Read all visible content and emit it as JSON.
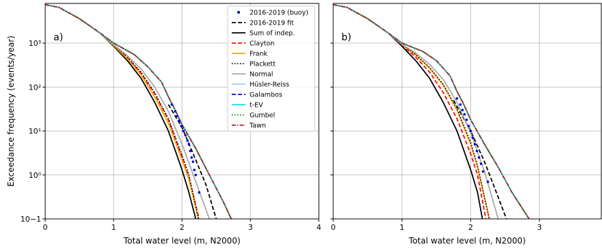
{
  "chart_data": [
    {
      "type": "line",
      "panel_label": "a)",
      "xlabel": "Total water level (m, N2000)",
      "ylabel": "Exceedance frequency (events/year)",
      "xlim": [
        0,
        4
      ],
      "ylim": [
        0.1,
        8000
      ],
      "yscale": "log",
      "grid": true,
      "x_ticks": [
        "0",
        "1",
        "2",
        "3",
        "4"
      ],
      "y_ticks": [
        "10−1",
        "10⁰",
        "10¹",
        "10²",
        "10³"
      ],
      "legend_position": "top-right",
      "series": [
        {
          "name": "2016-2019 (buoy)",
          "style": "points",
          "color": "#0000dd",
          "x": [
            1.85,
            1.9,
            1.93,
            1.96,
            1.99,
            2.02,
            2.05,
            2.08,
            2.1,
            2.12,
            2.14,
            2.16,
            2.18,
            2.2,
            2.25
          ],
          "y": [
            40,
            28,
            22,
            17,
            13,
            10,
            8,
            6,
            5,
            3.5,
            2.5,
            2,
            1.3,
            1.0,
            0.4
          ]
        },
        {
          "name": "2016-2019 fit",
          "style": "dashed",
          "color": "#000000",
          "x": [
            1.8,
            2.0,
            2.2,
            2.35,
            2.5
          ],
          "y": [
            40,
            12,
            2.2,
            0.6,
            0.1
          ]
        },
        {
          "name": "Sum of indep.",
          "style": "solid",
          "color": "#000000",
          "x": [
            0,
            0.2,
            0.5,
            0.8,
            1.0,
            1.2,
            1.4,
            1.6,
            1.8,
            2.0,
            2.1,
            2.2
          ],
          "y": [
            7500,
            6500,
            3600,
            1700,
            850,
            400,
            160,
            45,
            10,
            1.3,
            0.4,
            0.1
          ]
        },
        {
          "name": "Clayton",
          "style": "dashed",
          "color": "#ff0000",
          "x": [
            0,
            0.2,
            0.5,
            0.8,
            1.0,
            1.2,
            1.4,
            1.6,
            1.8,
            2.0,
            2.1,
            2.25
          ],
          "y": [
            7500,
            6500,
            3600,
            1700,
            900,
            470,
            210,
            70,
            18,
            2.6,
            0.9,
            0.1
          ]
        },
        {
          "name": "Frank",
          "style": "solid",
          "color": "#ffa500",
          "x": [
            0,
            0.2,
            0.5,
            0.8,
            1.0,
            1.2,
            1.4,
            1.6,
            1.8,
            2.0,
            2.1,
            2.24
          ],
          "y": [
            7500,
            6500,
            3600,
            1700,
            880,
            440,
            190,
            60,
            15,
            2.2,
            0.8,
            0.1
          ]
        },
        {
          "name": "Plackett",
          "style": "dotted",
          "color": "#000000",
          "x": [
            0,
            0.2,
            0.5,
            0.8,
            1.0,
            1.2,
            1.4,
            1.6,
            1.8,
            2.0,
            2.1,
            2.24
          ],
          "y": [
            7500,
            6500,
            3600,
            1700,
            900,
            480,
            220,
            75,
            19,
            2.8,
            1.0,
            0.1
          ]
        },
        {
          "name": "Normal",
          "style": "solid",
          "color": "#aaaaaa",
          "x": [
            0,
            0.2,
            0.5,
            0.8,
            1.0,
            1.2,
            1.4,
            1.6,
            1.8,
            2.0,
            2.2,
            2.4
          ],
          "y": [
            7500,
            6500,
            3600,
            1700,
            920,
            520,
            260,
            100,
            28,
            5,
            0.7,
            0.1
          ]
        },
        {
          "name": "Hüsler-Reiss",
          "style": "solid",
          "color": "#a6cee3",
          "x": [
            0,
            0.2,
            0.5,
            0.8,
            1.0,
            1.3,
            1.5,
            1.7,
            1.8,
            1.9,
            2.0,
            2.2,
            2.4,
            2.6,
            2.72
          ],
          "y": [
            7500,
            6500,
            3600,
            1700,
            1000,
            550,
            290,
            130,
            60,
            30,
            14,
            4,
            1,
            0.25,
            0.1
          ]
        },
        {
          "name": "Galambos",
          "style": "dashed",
          "color": "#0000dd",
          "x": [
            0,
            0.2,
            0.5,
            0.8,
            1.0,
            1.3,
            1.5,
            1.7,
            1.8,
            1.9,
            2.0,
            2.2,
            2.4,
            2.6,
            2.72
          ],
          "y": [
            7500,
            6500,
            3600,
            1700,
            1000,
            550,
            290,
            130,
            60,
            30,
            14,
            4,
            1,
            0.25,
            0.1
          ]
        },
        {
          "name": "t-EV",
          "style": "solid",
          "color": "#00e5ee",
          "x": [
            0,
            0.2,
            0.5,
            0.8,
            1.0,
            1.3,
            1.5,
            1.7,
            1.8,
            1.9,
            2.0,
            2.2,
            2.4,
            2.6,
            2.72
          ],
          "y": [
            7500,
            6500,
            3600,
            1700,
            1000,
            550,
            290,
            130,
            60,
            30,
            14,
            4,
            1,
            0.25,
            0.1
          ]
        },
        {
          "name": "Gumbel",
          "style": "dotted",
          "color": "#008000",
          "x": [
            0,
            0.2,
            0.5,
            0.8,
            1.0,
            1.3,
            1.5,
            1.7,
            1.8,
            1.9,
            2.0,
            2.2,
            2.4,
            2.6,
            2.72
          ],
          "y": [
            7500,
            6500,
            3600,
            1700,
            1000,
            550,
            290,
            130,
            60,
            30,
            14,
            4,
            1,
            0.25,
            0.1
          ]
        },
        {
          "name": "Tawn",
          "style": "dashdot",
          "color": "#b22222",
          "x": [
            0,
            0.2,
            0.5,
            0.8,
            1.0,
            1.3,
            1.5,
            1.7,
            1.8,
            1.9,
            2.0,
            2.2,
            2.4,
            2.6,
            2.72
          ],
          "y": [
            7500,
            6500,
            3600,
            1700,
            1000,
            550,
            290,
            130,
            60,
            30,
            14,
            4,
            1,
            0.25,
            0.1
          ]
        }
      ]
    },
    {
      "type": "line",
      "panel_label": "b)",
      "xlabel": "Total water level (m, N2000)",
      "ylabel": "",
      "xlim": [
        0,
        3.9
      ],
      "ylim": [
        0.1,
        8000
      ],
      "yscale": "log",
      "grid": true,
      "x_ticks": [
        "0",
        "1",
        "2",
        "3"
      ],
      "y_ticks": [],
      "series": [
        {
          "name": "2016-2019 (buoy)",
          "style": "points",
          "color": "#0000dd",
          "x": [
            1.8,
            1.85,
            1.88,
            1.91,
            1.94,
            1.97,
            2.0,
            2.03,
            2.06,
            2.09,
            2.12,
            2.15,
            2.18,
            2.25
          ],
          "y": [
            55,
            40,
            30,
            24,
            18,
            13,
            10,
            7,
            5,
            3.5,
            2.5,
            1.8,
            1.2,
            0.7
          ]
        },
        {
          "name": "2016-2019 fit",
          "style": "dashed",
          "color": "#000000",
          "x": [
            1.75,
            2.0,
            2.2,
            2.35,
            2.52
          ],
          "y": [
            50,
            10,
            2,
            0.5,
            0.1
          ]
        },
        {
          "name": "Sum of indep.",
          "style": "solid",
          "color": "#000000",
          "x": [
            0,
            0.2,
            0.5,
            0.8,
            1.0,
            1.2,
            1.4,
            1.6,
            1.8,
            2.0,
            2.1,
            2.17
          ],
          "y": [
            7500,
            6500,
            3600,
            1700,
            850,
            400,
            160,
            45,
            10,
            1.3,
            0.4,
            0.1
          ]
        },
        {
          "name": "Clayton",
          "style": "dashed",
          "color": "#ff0000",
          "x": [
            0,
            0.2,
            0.5,
            0.8,
            1.0,
            1.2,
            1.4,
            1.6,
            1.8,
            2.0,
            2.1,
            2.22
          ],
          "y": [
            7500,
            6500,
            3600,
            1700,
            900,
            480,
            220,
            75,
            19,
            3,
            1,
            0.1
          ]
        },
        {
          "name": "Frank",
          "style": "solid",
          "color": "#ffa500",
          "x": [
            0,
            0.2,
            0.5,
            0.8,
            1.0,
            1.2,
            1.4,
            1.6,
            1.8,
            2.0,
            2.1,
            2.27
          ],
          "y": [
            7500,
            6500,
            3600,
            1700,
            930,
            540,
            270,
            110,
            30,
            5,
            1.5,
            0.1
          ]
        },
        {
          "name": "Plackett",
          "style": "dotted",
          "color": "#000000",
          "x": [
            0,
            0.2,
            0.5,
            0.8,
            1.0,
            1.2,
            1.4,
            1.6,
            1.8,
            2.0,
            2.1,
            2.27
          ],
          "y": [
            7500,
            6500,
            3600,
            1700,
            930,
            550,
            280,
            115,
            32,
            5.5,
            1.6,
            0.1
          ]
        },
        {
          "name": "Normal",
          "style": "solid",
          "color": "#aaaaaa",
          "x": [
            0,
            0.2,
            0.5,
            0.8,
            1.0,
            1.2,
            1.4,
            1.6,
            1.8,
            2.0,
            2.2,
            2.4
          ],
          "y": [
            7500,
            6500,
            3600,
            1700,
            940,
            600,
            330,
            150,
            45,
            9,
            1.2,
            0.1
          ]
        },
        {
          "name": "Hüsler-Reiss",
          "style": "solid",
          "color": "#a6cee3",
          "x": [
            0,
            0.2,
            0.5,
            0.8,
            1.0,
            1.3,
            1.5,
            1.7,
            1.8,
            1.9,
            2.0,
            2.2,
            2.4,
            2.6,
            2.85
          ],
          "y": [
            7500,
            6500,
            3600,
            1700,
            1000,
            650,
            400,
            180,
            80,
            40,
            18,
            5,
            1.5,
            0.4,
            0.1
          ]
        },
        {
          "name": "Galambos",
          "style": "dashed",
          "color": "#0000dd",
          "x": [
            0,
            0.2,
            0.5,
            0.8,
            1.0,
            1.3,
            1.5,
            1.7,
            1.8,
            1.9,
            2.0,
            2.2,
            2.4,
            2.6,
            2.85
          ],
          "y": [
            7500,
            6500,
            3600,
            1700,
            1000,
            650,
            400,
            180,
            80,
            40,
            18,
            5,
            1.5,
            0.4,
            0.1
          ]
        },
        {
          "name": "t-EV",
          "style": "solid",
          "color": "#00e5ee",
          "x": [
            0,
            0.2,
            0.5,
            0.8,
            1.0,
            1.3,
            1.5,
            1.7,
            1.8,
            1.9,
            2.0,
            2.2,
            2.4,
            2.6,
            2.85
          ],
          "y": [
            7500,
            6500,
            3600,
            1700,
            1000,
            650,
            400,
            180,
            80,
            40,
            18,
            5,
            1.5,
            0.4,
            0.1
          ]
        },
        {
          "name": "Gumbel",
          "style": "dotted",
          "color": "#008000",
          "x": [
            0,
            0.2,
            0.5,
            0.8,
            1.0,
            1.3,
            1.5,
            1.7,
            1.8,
            1.9,
            2.0,
            2.2,
            2.4,
            2.6,
            2.85
          ],
          "y": [
            7500,
            6500,
            3600,
            1700,
            1000,
            650,
            400,
            180,
            80,
            40,
            18,
            5,
            1.5,
            0.4,
            0.1
          ]
        },
        {
          "name": "Tawn",
          "style": "dashdot",
          "color": "#b22222",
          "x": [
            0,
            0.2,
            0.5,
            0.8,
            1.0,
            1.3,
            1.5,
            1.7,
            1.8,
            1.9,
            2.0,
            2.2,
            2.4,
            2.6,
            2.85
          ],
          "y": [
            7500,
            6500,
            3600,
            1700,
            1000,
            650,
            400,
            180,
            80,
            40,
            18,
            5,
            1.5,
            0.4,
            0.1
          ]
        }
      ]
    }
  ]
}
